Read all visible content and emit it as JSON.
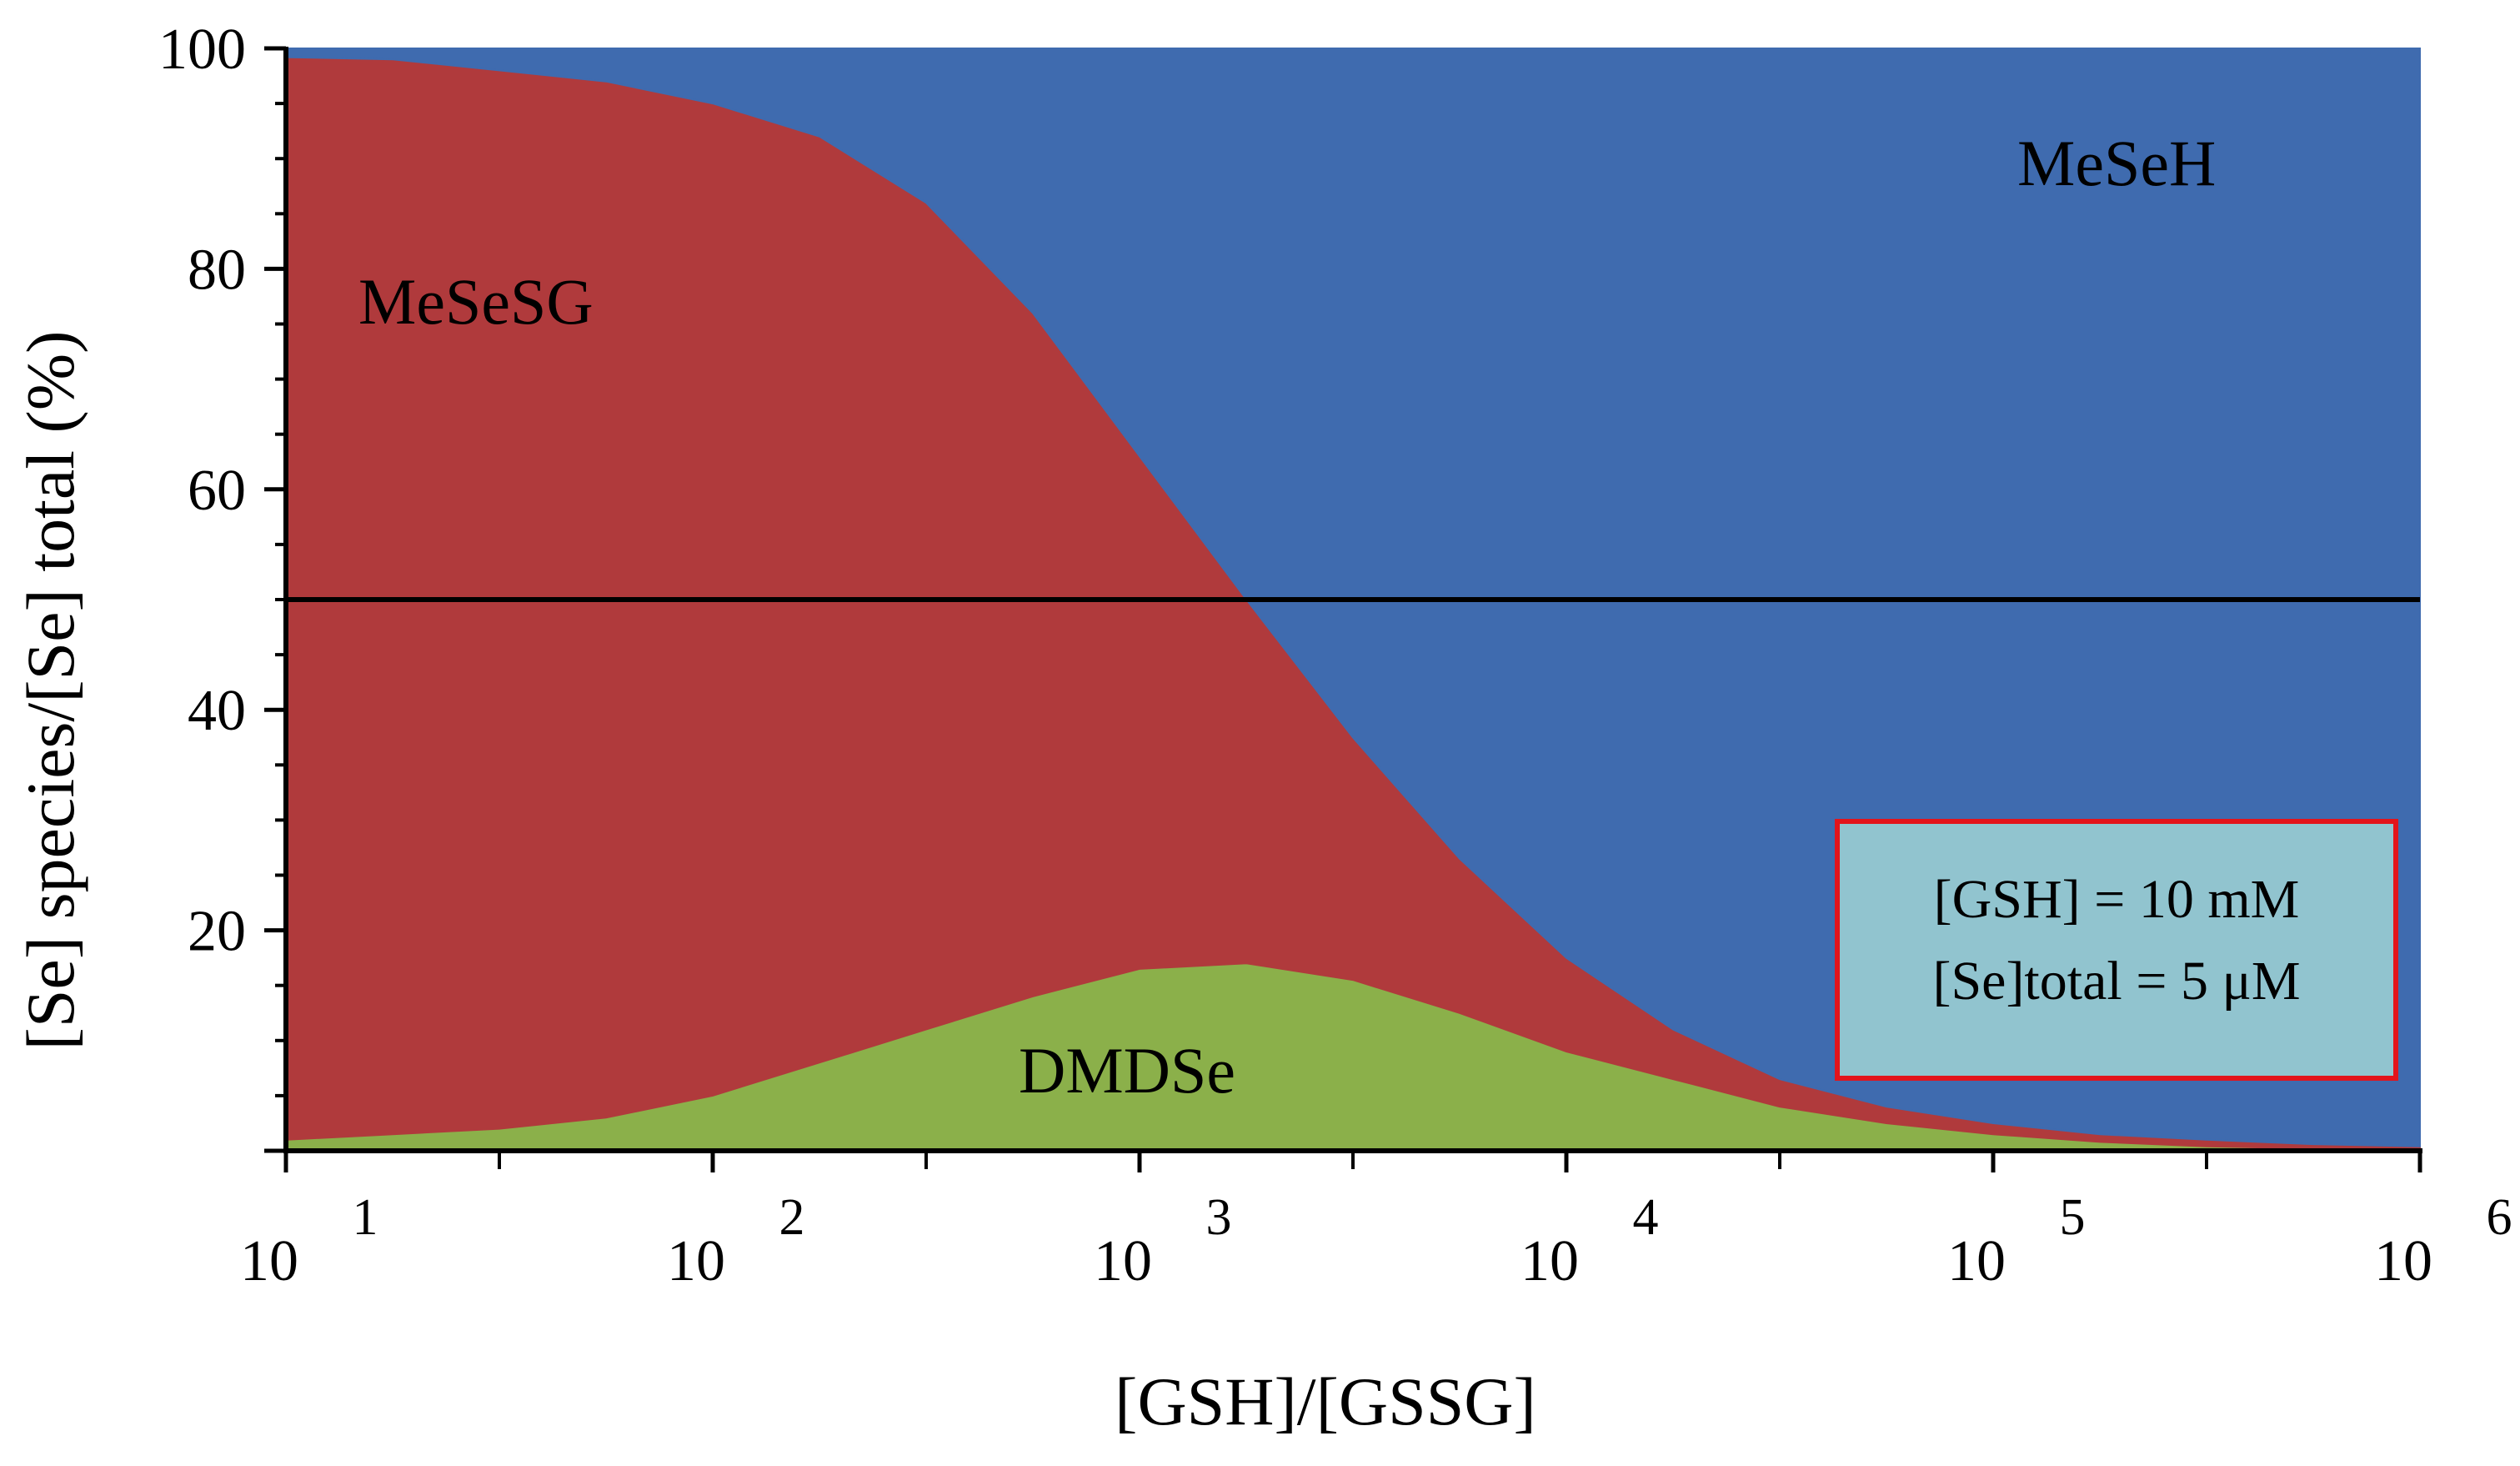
{
  "chart_data": {
    "type": "area",
    "stacked": true,
    "xlabel": "[GSH]/[GSSG]",
    "ylabel": "[Se] species/[Se] total (%)",
    "xscale": "log",
    "xlim": [
      10,
      1000000
    ],
    "ylim": [
      0,
      100
    ],
    "x_ticks": [
      {
        "base": "10",
        "exp": "1"
      },
      {
        "base": "10",
        "exp": "2"
      },
      {
        "base": "10",
        "exp": "3"
      },
      {
        "base": "10",
        "exp": "4"
      },
      {
        "base": "10",
        "exp": "5"
      },
      {
        "base": "10",
        "exp": "6"
      }
    ],
    "y_ticks": [
      "20",
      "40",
      "60",
      "80",
      "100"
    ],
    "x": [
      10,
      17.8,
      31.6,
      56.2,
      100,
      178,
      316,
      562,
      1000,
      1780,
      3160,
      5620,
      10000,
      17800,
      31600,
      56200,
      100000,
      178000,
      316000,
      562000,
      1000000
    ],
    "series": [
      {
        "name": "DMDSe",
        "color": "#8bb04a",
        "values": [
          1,
          1.5,
          2,
          3,
          5,
          8,
          11,
          14,
          16.5,
          17,
          15.5,
          12.5,
          9,
          6.5,
          4,
          2.5,
          1.5,
          0.8,
          0.4,
          0.2,
          0.1
        ]
      },
      {
        "name": "MeSeSG",
        "color": "#b03a3c",
        "values": [
          98.2,
          97.5,
          96,
          94,
          90,
          84,
          75,
          62,
          46.5,
          33,
          22,
          14,
          8.5,
          4.5,
          2.5,
          1.5,
          1,
          0.7,
          0.6,
          0.4,
          0.3
        ]
      },
      {
        "name": "MeSeH",
        "color": "#3f6baf",
        "values": [
          0.8,
          1,
          2,
          3,
          5,
          8,
          14,
          24,
          37,
          50,
          62.5,
          73.5,
          82.5,
          89,
          93.5,
          96,
          97.5,
          98.5,
          99,
          99.4,
          99.6
        ]
      }
    ],
    "reference_line": {
      "y": 50,
      "color": "#000000"
    },
    "annotation_lines": [
      "[GSH] = 10 mM",
      "[Se]total = 5 μM"
    ],
    "annotation_box_fill": "#91c4cf",
    "annotation_box_border": "#e3141b",
    "grid": false,
    "legend": "none"
  }
}
